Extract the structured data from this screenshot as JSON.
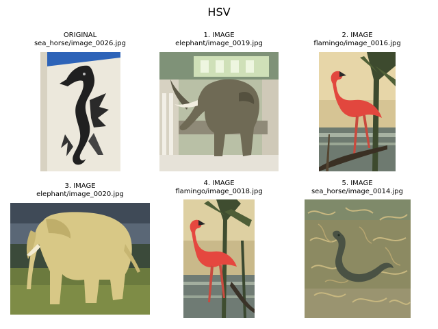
{
  "figure": {
    "title": "HSV"
  },
  "panels": [
    {
      "heading": "ORIGINAL",
      "path": "sea_horse/image_0026.jpg",
      "subject": "sea-horse-sculpture"
    },
    {
      "heading": "1. IMAGE",
      "path": "elephant/image_0019.jpg",
      "subject": "elephant-museum"
    },
    {
      "heading": "2. IMAGE",
      "path": "flamingo/image_0016.jpg",
      "subject": "flamingo-palms"
    },
    {
      "heading": "3. IMAGE",
      "path": "elephant/image_0020.jpg",
      "subject": "elephant-field"
    },
    {
      "heading": "4. IMAGE",
      "path": "flamingo/image_0018.jpg",
      "subject": "flamingo-water"
    },
    {
      "heading": "5. IMAGE",
      "path": "sea_horse/image_0014.jpg",
      "subject": "sea-horse-seaweed"
    }
  ]
}
